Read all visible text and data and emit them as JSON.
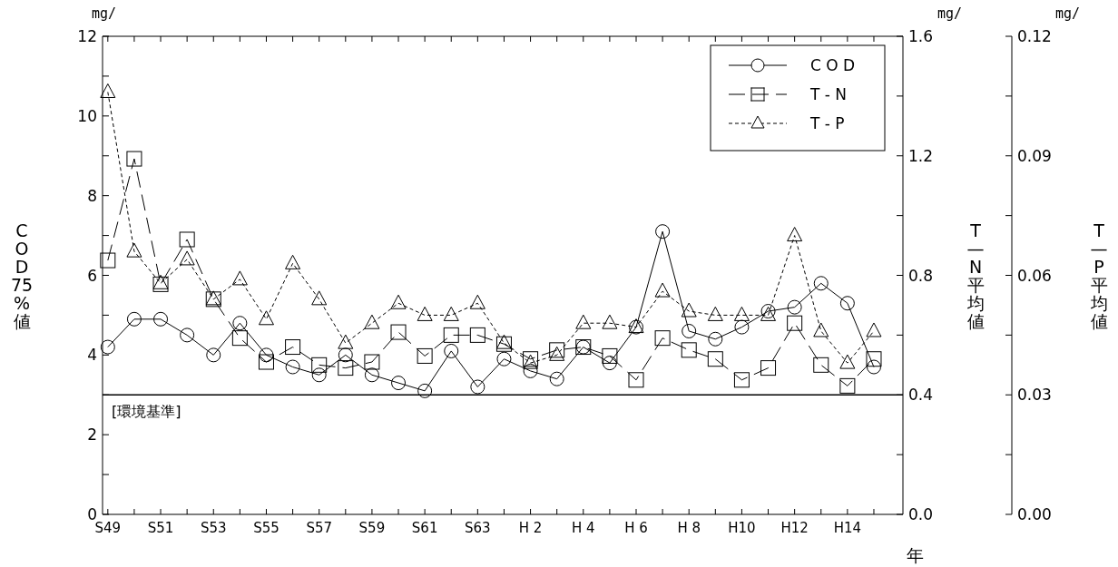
{
  "chart_data": {
    "type": "line",
    "categories": [
      "S49",
      null,
      "S51",
      null,
      "S53",
      null,
      "S55",
      null,
      "S57",
      null,
      "S59",
      null,
      "S61",
      null,
      "S63",
      null,
      "H 2",
      null,
      "H 4",
      null,
      "H 6",
      null,
      "H 8",
      null,
      "H10",
      null,
      "H12",
      null,
      "H14",
      null
    ],
    "series": [
      {
        "name": "C O D",
        "color": "#000000",
        "line_style": "solid",
        "marker": "circle",
        "values": [
          4.2,
          4.9,
          4.9,
          4.5,
          4.0,
          4.8,
          4.0,
          3.7,
          3.5,
          4.0,
          3.5,
          3.3,
          3.1,
          4.1,
          3.2,
          3.9,
          3.6,
          3.4,
          4.2,
          3.8,
          4.7,
          7.1,
          4.6,
          4.4,
          4.7,
          5.1,
          5.2,
          5.8,
          5.3,
          3.7
        ]
      },
      {
        "name": "T - N",
        "color": "#000000",
        "line_style": "dashed",
        "marker": "square",
        "axis": "y2",
        "values": [
          0.85,
          1.19,
          0.77,
          0.92,
          0.72,
          0.59,
          0.51,
          0.56,
          0.5,
          0.49,
          0.51,
          0.61,
          0.53,
          0.6,
          0.6,
          0.57,
          0.52,
          0.55,
          0.56,
          0.53,
          0.45,
          0.59,
          0.55,
          0.52,
          0.45,
          0.49,
          0.64,
          0.5,
          0.43,
          0.52
        ]
      },
      {
        "name": "T - P",
        "color": "#000000",
        "line_style": "dotted",
        "marker": "triangle",
        "axis": "y3",
        "values": [
          0.106,
          0.066,
          0.058,
          0.064,
          0.054,
          0.059,
          0.049,
          0.063,
          0.054,
          0.043,
          0.048,
          0.053,
          0.05,
          0.05,
          0.053,
          0.043,
          0.038,
          0.04,
          0.048,
          0.048,
          0.047,
          0.056,
          0.051,
          0.05,
          0.05,
          0.05,
          0.07,
          0.046,
          0.038,
          0.046
        ]
      }
    ],
    "xlabel": "年",
    "ylabel": "COD75%値",
    "y2label": "T—N平均値",
    "y3label": "T—P平均値",
    "ylim": [
      0,
      12
    ],
    "yticks": [
      0,
      {
        "value": 1,
        "label": null
      },
      2,
      {
        "value": 3,
        "label": null
      },
      4,
      {
        "value": 5,
        "label": null
      },
      6,
      {
        "value": 7,
        "label": null
      },
      8,
      {
        "value": 9,
        "label": null
      },
      10,
      {
        "value": 11,
        "label": null
      },
      12
    ],
    "y2lim": [
      0,
      1.6
    ],
    "y2ticks": [
      {
        "value": 0,
        "label": "0.0"
      },
      {
        "value": 0.2,
        "label": null
      },
      0.4,
      {
        "value": 0.6,
        "label": null
      },
      0.8,
      {
        "value": 1.0,
        "label": null
      },
      1.2,
      {
        "value": 1.4,
        "label": null
      },
      1.6
    ],
    "y3lim": [
      0,
      0.12
    ],
    "y3ticks": [
      {
        "value": 0,
        "label": "0.00"
      },
      {
        "value": 0.015,
        "label": null
      },
      0.03,
      {
        "value": 0.045,
        "label": null
      },
      0.06,
      {
        "value": 0.075,
        "label": null
      },
      0.09,
      {
        "value": 0.105,
        "label": null
      },
      0.12
    ],
    "ref_lines": [
      {
        "axis": "y",
        "value": 3,
        "label": "[環境基準]",
        "color": "#000000"
      }
    ],
    "annotations": [
      "mg/",
      "mg/",
      "mg/"
    ],
    "legend": "top right"
  }
}
